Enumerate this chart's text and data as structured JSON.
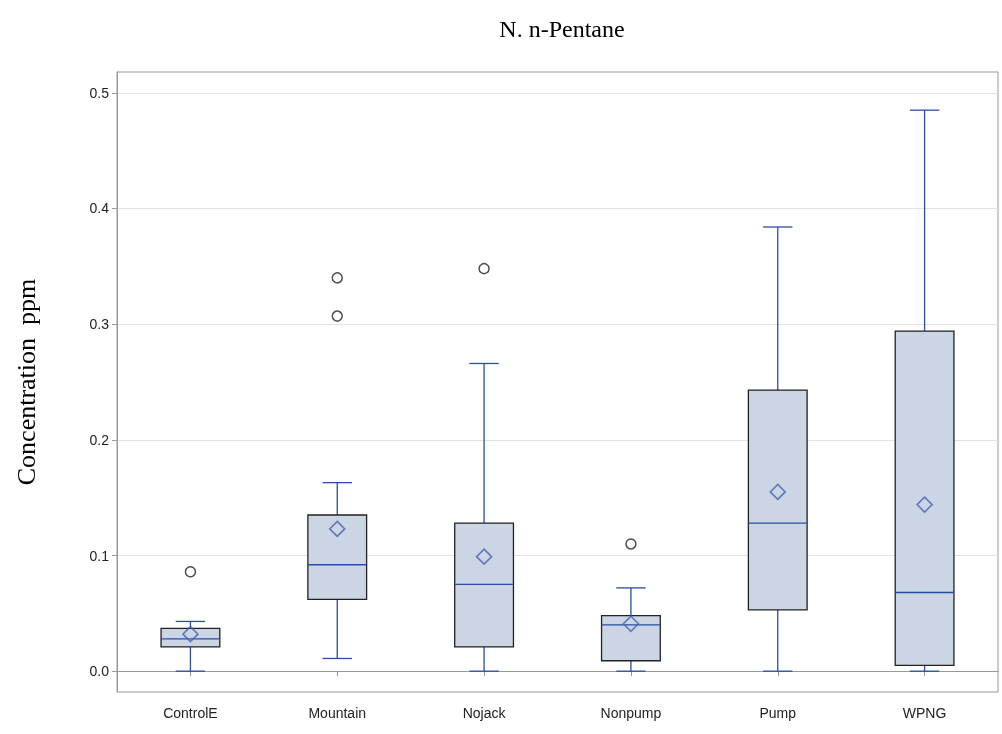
{
  "chart_data": {
    "type": "box",
    "title": "N. n-Pentane",
    "ylabel": "Concentration  ppm",
    "categories": [
      "ControlE",
      "Mountain",
      "Nojack",
      "Nonpump",
      "Pump",
      "WPNG"
    ],
    "color": "#cbd5e3",
    "boxes": [
      {
        "low": 0,
        "q1": 0.021,
        "median": 0.028,
        "q3": 0.037,
        "high": 0.043,
        "mean": 0.032,
        "outliers": [
          0.086
        ]
      },
      {
        "low": 0.011,
        "q1": 0.062,
        "median": 0.092,
        "q3": 0.135,
        "high": 0.163,
        "mean": 0.123,
        "outliers": [
          0.307,
          0.34
        ]
      },
      {
        "low": 0,
        "q1": 0.021,
        "median": 0.075,
        "q3": 0.128,
        "high": 0.266,
        "mean": 0.099,
        "outliers": [
          0.348
        ]
      },
      {
        "low": 0,
        "q1": 0.009,
        "median": 0.04,
        "q3": 0.048,
        "high": 0.072,
        "mean": 0.041,
        "outliers": [
          0.11
        ]
      },
      {
        "low": 0,
        "q1": 0.053,
        "median": 0.128,
        "q3": 0.243,
        "high": 0.384,
        "mean": 0.155
      },
      {
        "low": 0,
        "q1": 0.005,
        "median": 0.068,
        "q3": 0.294,
        "high": 0.485,
        "mean": 0.144
      }
    ],
    "ylim": [
      -0.018,
      0.518
    ],
    "yticks": [
      {
        "value": 0,
        "label": "0.0"
      },
      0.1,
      0.2,
      0.3,
      0.4,
      0.5
    ],
    "grid": "y"
  }
}
